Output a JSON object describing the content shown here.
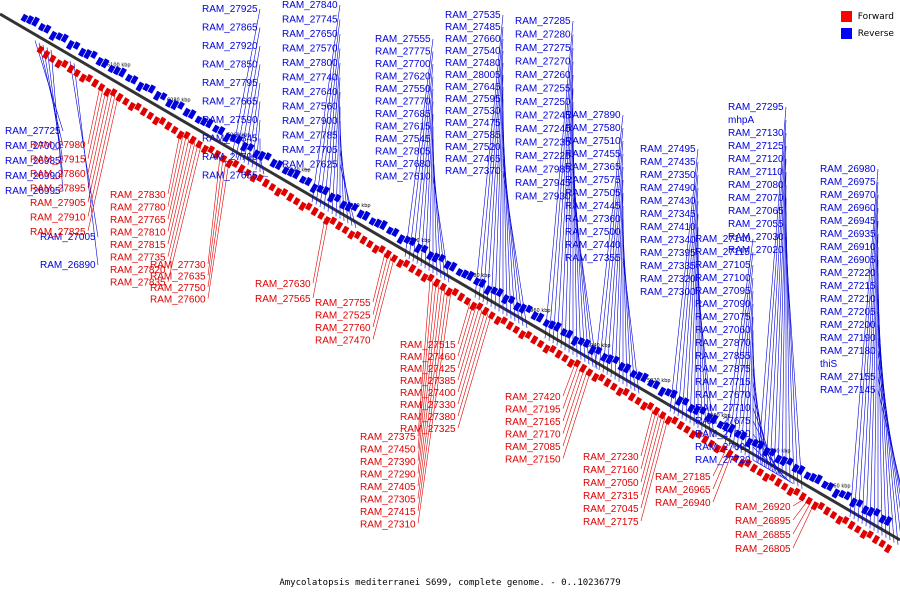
{
  "caption": "Amycolatopsis mediterranei S699, complete genome. - 0..10236779",
  "legend": [
    {
      "label": "Forward",
      "color": "#ff0000"
    },
    {
      "label": "Reverse",
      "color": "#0000ff"
    }
  ],
  "colors": {
    "forward": "#e00000",
    "reverse": "#0000dd",
    "axis": "#333333"
  },
  "kbp_ticks": [
    "6100 kbp",
    "6080 kbp",
    "6060 kbp",
    "6040 kbp",
    "6020 kbp",
    "6000 kbp",
    "5980 kbp",
    "5960 kbp",
    "5940 kbp",
    "5920 kbp",
    "5900 kbp",
    "5880 kbp",
    "5860 kbp"
  ],
  "reverse_labels": [
    "RAM_27925",
    "RAM_27865",
    "RAM_27920",
    "RAM_27850",
    "RAM_27795",
    "RAM_27665",
    "RAM_27590",
    "RAM_27845",
    "RAM_27790",
    "RAM_27655",
    "RAM_27840",
    "RAM_27745",
    "RAM_27650",
    "RAM_27570",
    "RAM_27800",
    "RAM_27740",
    "RAM_27640",
    "RAM_27560",
    "RAM_27900",
    "RAM_27785",
    "RAM_27705",
    "RAM_27625",
    "RAM_27555",
    "RAM_27775",
    "RAM_27700",
    "RAM_27620",
    "RAM_27550",
    "RAM_27770",
    "RAM_27685",
    "RAM_27615",
    "RAM_27545",
    "RAM_27805",
    "RAM_27680",
    "RAM_27610",
    "RAM_27535",
    "RAM_27485",
    "RAM_27660",
    "RAM_27540",
    "RAM_27480",
    "RAM_28005",
    "RAM_27645",
    "RAM_27595",
    "RAM_27530",
    "RAM_27475",
    "RAM_27585",
    "RAM_27520",
    "RAM_27465",
    "RAM_27370",
    "RAM_27285",
    "RAM_27280",
    "RAM_27275",
    "RAM_27270",
    "RAM_27260",
    "RAM_27255",
    "RAM_27250",
    "RAM_27245",
    "RAM_27240",
    "RAM_27235",
    "RAM_27225",
    "RAM_27985",
    "RAM_27945",
    "RAM_27930",
    "RAM_27890",
    "RAM_27580",
    "RAM_27510",
    "RAM_27455",
    "RAM_27365",
    "RAM_27575",
    "RAM_27505",
    "RAM_27445",
    "RAM_27360",
    "RAM_27500",
    "RAM_27440",
    "RAM_27355",
    "RAM_27495",
    "RAM_27435",
    "RAM_27350",
    "RAM_27490",
    "RAM_27430",
    "RAM_27345",
    "RAM_27410",
    "RAM_27340",
    "RAM_27395",
    "RAM_27335",
    "RAM_27320",
    "RAM_27300",
    "RAM_27295",
    "mhpA",
    "RAM_27130",
    "RAM_27125",
    "RAM_27120",
    "RAM_27110",
    "RAM_27080",
    "RAM_27070",
    "RAM_27065",
    "RAM_27055",
    "RAM_27030",
    "RAM_27020",
    "RAM_26980",
    "RAM_26975",
    "RAM_26970",
    "RAM_26960",
    "RAM_26945",
    "RAM_26935",
    "RAM_26910",
    "RAM_26905",
    "RAM_27220",
    "RAM_27215",
    "RAM_27210",
    "RAM_27205",
    "RAM_27200",
    "RAM_27190",
    "RAM_27180",
    "thiS",
    "RAM_27155",
    "RAM_27145",
    "RAM_27140",
    "RAM_27115",
    "RAM_27105",
    "RAM_27100",
    "RAM_27095",
    "RAM_27090",
    "RAM_27075",
    "RAM_27060",
    "RAM_27870",
    "RAM_27855",
    "RAM_27875",
    "RAM_27715",
    "RAM_27670",
    "RAM_27710",
    "RAM_27675",
    "RAM_27690",
    "RAM_27695",
    "RAM_27720",
    "RAM_27725",
    "RAM_27000",
    "RAM_26985",
    "RAM_26990",
    "RAM_26995",
    "RAM_27005",
    "RAM_26890"
  ],
  "forward_labels": [
    "RAM_27980",
    "RAM_27915",
    "RAM_27860",
    "RAM_27895",
    "RAM_27905",
    "RAM_27910",
    "RAM_27825",
    "RAM_27830",
    "RAM_27780",
    "RAM_27765",
    "RAM_27810",
    "RAM_27815",
    "RAM_27735",
    "RAM_27820",
    "RAM_27835",
    "RAM_27730",
    "RAM_27635",
    "RAM_27750",
    "RAM_27600",
    "RAM_27630",
    "RAM_27565",
    "RAM_27755",
    "RAM_27525",
    "RAM_27760",
    "RAM_27470",
    "RAM_27515",
    "RAM_27460",
    "RAM_27425",
    "RAM_27385",
    "RAM_27400",
    "RAM_27330",
    "RAM_27380",
    "RAM_27325",
    "RAM_27375",
    "RAM_27450",
    "RAM_27390",
    "RAM_27290",
    "RAM_27405",
    "RAM_27305",
    "RAM_27415",
    "RAM_27310",
    "RAM_27420",
    "RAM_27195",
    "RAM_27165",
    "RAM_27170",
    "RAM_27085",
    "RAM_27150",
    "RAM_27230",
    "RAM_27160",
    "RAM_27050",
    "RAM_27315",
    "RAM_27045",
    "RAM_27175",
    "RAM_27185",
    "RAM_26965",
    "RAM_26940",
    "RAM_26920",
    "RAM_26895",
    "RAM_26855",
    "RAM_26805"
  ]
}
